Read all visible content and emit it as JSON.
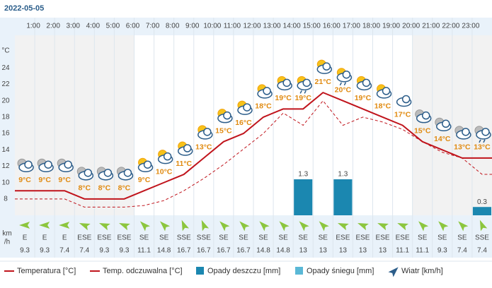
{
  "chart_data": {
    "type": "line",
    "title": "2022-05-05",
    "categories": [
      null,
      "1:00",
      "2:00",
      "3:00",
      "4:00",
      "5:00",
      "6:00",
      "7:00",
      "8:00",
      "9:00",
      "10:00",
      "11:00",
      "12:00",
      "13:00",
      "14:00",
      "15:00",
      "16:00",
      "17:00",
      "18:00",
      "19:00",
      "20:00",
      "21:00",
      "22:00",
      "23:00"
    ],
    "ylabel": "°C",
    "ylim": [
      6,
      28
    ],
    "yticks": [
      8,
      10,
      12,
      14,
      16,
      18,
      20,
      22,
      24
    ],
    "y2lim": [
      0,
      6.5
    ],
    "series": [
      {
        "name": "Temperatura [°C]",
        "color": "#c0141c",
        "values": [
          9,
          9,
          9,
          8,
          8,
          8,
          9,
          10,
          11,
          13,
          15,
          16,
          18,
          19,
          19,
          21,
          20,
          19,
          18,
          17,
          15,
          14,
          13,
          13
        ],
        "value_labels": [
          "9°C",
          "9°C",
          "9°C",
          "8°C",
          "8°C",
          "8°C",
          "9°C",
          "10°C",
          "11°C",
          "13°C",
          "15°C",
          "16°C",
          "18°C",
          "19°C",
          "19°C",
          "21°C",
          "20°C",
          "19°C",
          "18°C",
          "17°C",
          "15°C",
          "14°C",
          "13°C",
          "13°C"
        ]
      },
      {
        "name": "Temp. odczuwalna [°C]",
        "color": "#c0141c",
        "values": [
          8,
          8,
          8,
          7,
          7,
          7,
          7.2,
          7.8,
          9,
          10.5,
          12.2,
          14.1,
          16,
          18.5,
          17,
          20,
          17,
          18,
          17.4,
          16.5,
          15,
          13.7,
          13,
          11
        ]
      },
      {
        "name": "Opady deszczu [mm]",
        "color": "#1b87b0",
        "axis": "y2",
        "values": [
          0,
          0,
          0,
          0,
          0,
          0,
          0,
          0,
          0,
          0,
          0,
          0,
          0,
          0,
          1.3,
          0,
          1.3,
          0,
          0,
          0,
          0,
          0,
          0,
          0.3
        ]
      },
      {
        "name": "Opady śniegu [mm]",
        "color": "#5ab8d6",
        "axis": "y2",
        "values": [
          0,
          0,
          0,
          0,
          0,
          0,
          0,
          0,
          0,
          0,
          0,
          0,
          0,
          0,
          0,
          0,
          0,
          0,
          0,
          0,
          0,
          0,
          0,
          0
        ]
      },
      {
        "name": "Wiatr [km/h]",
        "color": "#8cc63e",
        "directions": [
          "E",
          "E",
          "E",
          "ESE",
          "ESE",
          "ESE",
          "SE",
          "SE",
          "SSE",
          "SSE",
          "SE",
          "SE",
          "SE",
          "SE",
          "SE",
          "SE",
          "ESE",
          "ESE",
          "ESE",
          "ESE",
          "SE",
          "SE",
          "SE",
          "SSE"
        ],
        "values": [
          9.3,
          9.3,
          7.4,
          7.4,
          9.3,
          9.3,
          11.1,
          14.8,
          16.7,
          16.7,
          16.7,
          16.7,
          14.8,
          14.8,
          13,
          13,
          13,
          13,
          13,
          11.1,
          11.1,
          9.3,
          7.4,
          7.4
        ]
      }
    ],
    "wind_unit": [
      "km",
      "/h"
    ]
  }
}
